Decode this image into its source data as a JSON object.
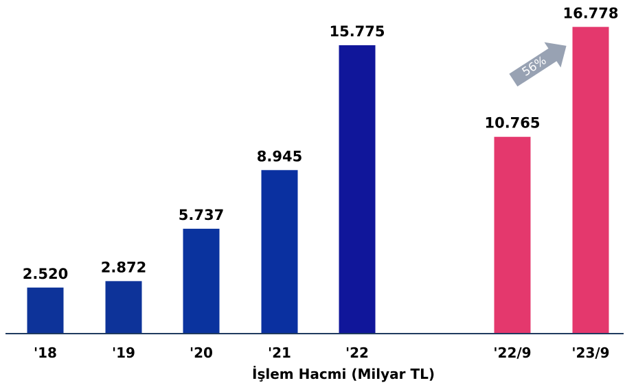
{
  "chart_data": {
    "type": "bar",
    "categories": [
      "'18",
      "'19",
      "'20",
      "'21",
      "'22",
      "'22/9",
      "'23/9"
    ],
    "values": [
      2520,
      2872,
      5737,
      8945,
      15775,
      10765,
      16778
    ],
    "data_labels": [
      "2.520",
      "2.872",
      "5.737",
      "8.945",
      "15.775",
      "10.765",
      "16.778"
    ],
    "xlabel": "İşlem Hacmi (Milyar TL)",
    "ylabel": "",
    "ylim": [
      0,
      17500
    ],
    "grid": false,
    "legend": "none",
    "colors": [
      "#0d3399",
      "#0d3399",
      "#0a339e",
      "#0a30a0",
      "#10169a",
      "#e4386d",
      "#e4386d"
    ],
    "annotation": {
      "text": "56%",
      "from_category": "'22/9",
      "to_category": "'23/9",
      "color": "#98a2b3"
    },
    "axis_color": "#1f3a5f"
  }
}
